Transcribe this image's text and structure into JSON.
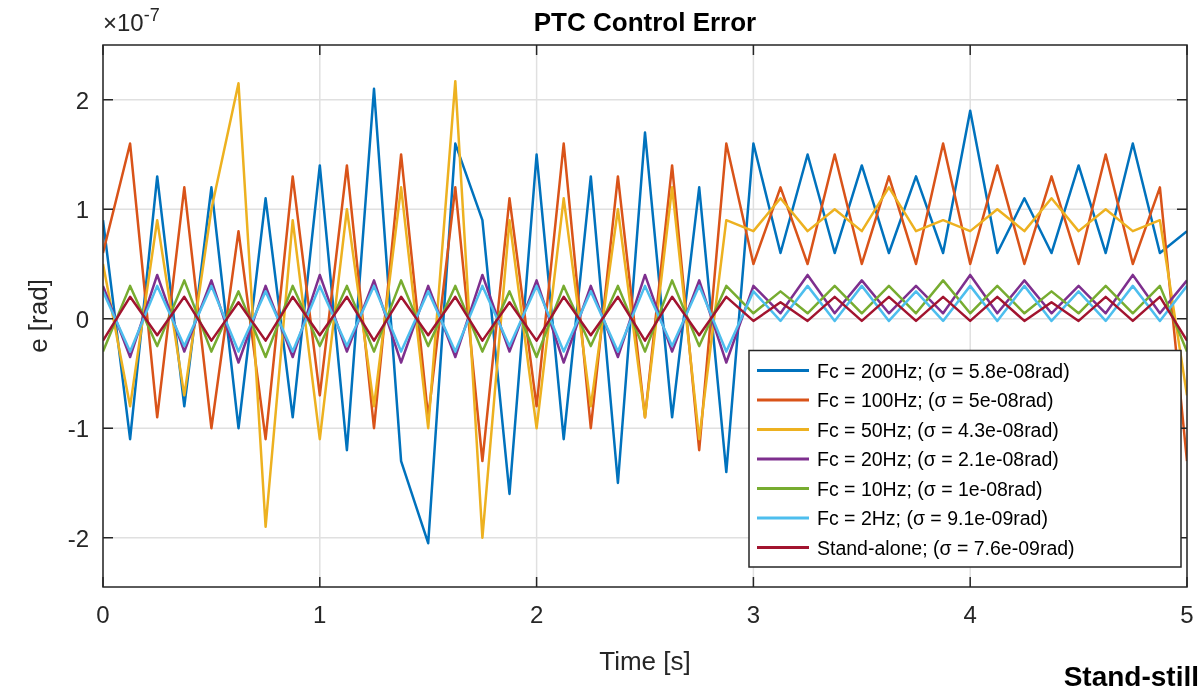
{
  "chart_data": {
    "type": "line",
    "title": "PTC Control Error",
    "xlabel": "Time [s]",
    "ylabel": "e [rad]",
    "annotations": [
      "×10$^{-7}$",
      "Stand-still"
    ],
    "x": [
      0,
      0.125,
      0.25,
      0.375,
      0.5,
      0.625,
      0.75,
      0.875,
      1,
      1.125,
      1.25,
      1.375,
      1.5,
      1.625,
      1.75,
      1.875,
      2,
      2.125,
      2.25,
      2.375,
      2.5,
      2.625,
      2.75,
      2.875,
      3,
      3.125,
      3.25,
      3.375,
      3.5,
      3.625,
      3.75,
      3.875,
      4,
      4.125,
      4.25,
      4.375,
      4.5,
      4.625,
      4.75,
      4.875,
      5
    ],
    "xlim": [
      0,
      5
    ],
    "xticks": [
      0,
      1,
      2,
      3,
      4,
      5
    ],
    "ylim": [
      -2.45,
      2.5
    ],
    "yticks": [
      -2,
      -1,
      0,
      1,
      2
    ],
    "grid": true,
    "legend": "bottom right",
    "line_style": "solid",
    "marker": "none",
    "series": [
      {
        "name": "Fc = 200Hz; (σ = 5.8e-08rad)",
        "color": "#0072bd",
        "values": [
          0.9,
          -1.1,
          1.3,
          -0.8,
          1.2,
          -1.0,
          1.1,
          -0.9,
          1.4,
          -1.2,
          2.1,
          -1.3,
          -2.05,
          1.6,
          0.9,
          -1.6,
          1.5,
          -1.1,
          1.3,
          -1.5,
          1.7,
          -0.9,
          1.2,
          -1.4,
          1.6,
          0.6,
          1.5,
          0.6,
          1.4,
          0.6,
          1.3,
          0.6,
          1.9,
          0.6,
          1.1,
          0.6,
          1.4,
          0.6,
          1.6,
          0.6,
          0.8
        ]
      },
      {
        "name": "Fc = 100Hz; (σ = 5e-08rad)",
        "color": "#d95319",
        "values": [
          0.6,
          1.6,
          -0.9,
          1.2,
          -1.0,
          0.8,
          -1.1,
          1.3,
          -0.7,
          1.4,
          -1.0,
          1.5,
          -0.9,
          1.2,
          -1.3,
          1.1,
          -0.8,
          1.6,
          -1.0,
          1.3,
          -0.9,
          1.4,
          -1.2,
          1.6,
          0.5,
          1.2,
          0.5,
          1.5,
          0.5,
          1.3,
          0.5,
          1.6,
          0.5,
          1.4,
          0.5,
          1.3,
          0.5,
          1.5,
          0.5,
          1.2,
          -1.3
        ]
      },
      {
        "name": "Fc = 50Hz; (σ = 4.3e-08rad)",
        "color": "#edb120",
        "values": [
          0.5,
          -0.8,
          0.9,
          -0.7,
          1.0,
          2.15,
          -1.9,
          0.9,
          -1.1,
          1.0,
          -0.8,
          1.2,
          -1.0,
          2.17,
          -2.0,
          0.9,
          -1.0,
          1.1,
          -0.8,
          1.0,
          -0.9,
          1.2,
          -1.1,
          0.9,
          0.8,
          1.1,
          0.8,
          1.0,
          0.8,
          1.2,
          0.8,
          0.9,
          0.8,
          1.0,
          0.8,
          1.1,
          0.8,
          1.0,
          0.8,
          0.9,
          -0.7
        ]
      },
      {
        "name": "Fc = 20Hz; (σ = 2.1e-08rad)",
        "color": "#7e2f8e",
        "values": [
          0.3,
          -0.35,
          0.4,
          -0.3,
          0.35,
          -0.4,
          0.3,
          -0.35,
          0.4,
          -0.3,
          0.35,
          -0.4,
          0.3,
          -0.35,
          0.4,
          -0.3,
          0.35,
          -0.4,
          0.3,
          -0.35,
          0.4,
          -0.3,
          0.35,
          -0.4,
          0.3,
          0.05,
          0.4,
          0.05,
          0.35,
          0.05,
          0.3,
          0.05,
          0.4,
          0.05,
          0.35,
          0.05,
          0.3,
          0.05,
          0.4,
          0.05,
          0.35
        ]
      },
      {
        "name": "Fc = 10Hz; (σ = 1e-08rad)",
        "color": "#77ac30",
        "values": [
          -0.3,
          0.3,
          -0.25,
          0.35,
          -0.3,
          0.25,
          -0.35,
          0.3,
          -0.25,
          0.3,
          -0.3,
          0.35,
          -0.25,
          0.3,
          -0.3,
          0.25,
          -0.35,
          0.3,
          -0.25,
          0.3,
          -0.3,
          0.35,
          -0.25,
          0.3,
          0.05,
          0.25,
          0.05,
          0.3,
          0.05,
          0.3,
          0.05,
          0.35,
          0.05,
          0.3,
          0.05,
          0.25,
          0.05,
          0.3,
          0.05,
          0.3,
          -0.3
        ]
      },
      {
        "name": "Fc = 2Hz; (σ = 9.1e-09rad)",
        "color": "#4dbeee",
        "values": [
          0.25,
          -0.3,
          0.3,
          -0.25,
          0.3,
          -0.3,
          0.25,
          -0.3,
          0.3,
          -0.25,
          0.3,
          -0.3,
          0.25,
          -0.3,
          0.3,
          -0.25,
          0.3,
          -0.3,
          0.25,
          -0.3,
          0.3,
          -0.25,
          0.3,
          -0.3,
          0.25,
          -0.02,
          0.3,
          -0.02,
          0.3,
          -0.02,
          0.25,
          -0.02,
          0.3,
          -0.02,
          0.3,
          -0.02,
          0.25,
          -0.02,
          0.3,
          -0.02,
          0.3
        ]
      },
      {
        "name": "Stand-alone; (σ = 7.6e-09rad)",
        "color": "#a2142f",
        "values": [
          -0.2,
          0.2,
          -0.15,
          0.2,
          -0.2,
          0.15,
          -0.2,
          0.2,
          -0.15,
          0.2,
          -0.2,
          0.2,
          -0.15,
          0.2,
          -0.2,
          0.15,
          -0.2,
          0.2,
          -0.15,
          0.2,
          -0.2,
          0.2,
          -0.15,
          0.2,
          -0.02,
          0.15,
          -0.02,
          0.2,
          -0.02,
          0.2,
          -0.02,
          0.2,
          -0.02,
          0.2,
          -0.02,
          0.15,
          -0.02,
          0.2,
          -0.02,
          0.2,
          -0.2
        ]
      }
    ]
  }
}
